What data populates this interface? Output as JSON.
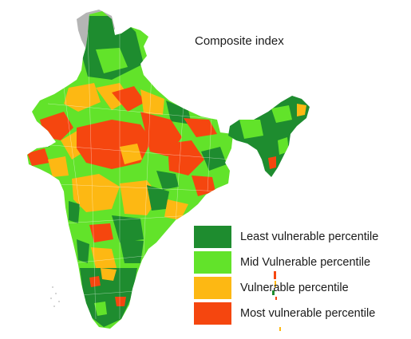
{
  "title": "Composite index",
  "colors": {
    "least": "#1e8c2f",
    "mid": "#62e32a",
    "vulnerable": "#fdb813",
    "most": "#f5460f",
    "disputed": "#b5b5b5"
  },
  "legend": [
    {
      "label": "Least vulnerable percentile",
      "color": "#1e8c2f"
    },
    {
      "label": "Mid Vulnerable percentile",
      "color": "#62e32a"
    },
    {
      "label": "Vulnerable percentile",
      "color": "#fdb813"
    },
    {
      "label": "Most vulnerable percentile",
      "color": "#f5460f"
    }
  ]
}
